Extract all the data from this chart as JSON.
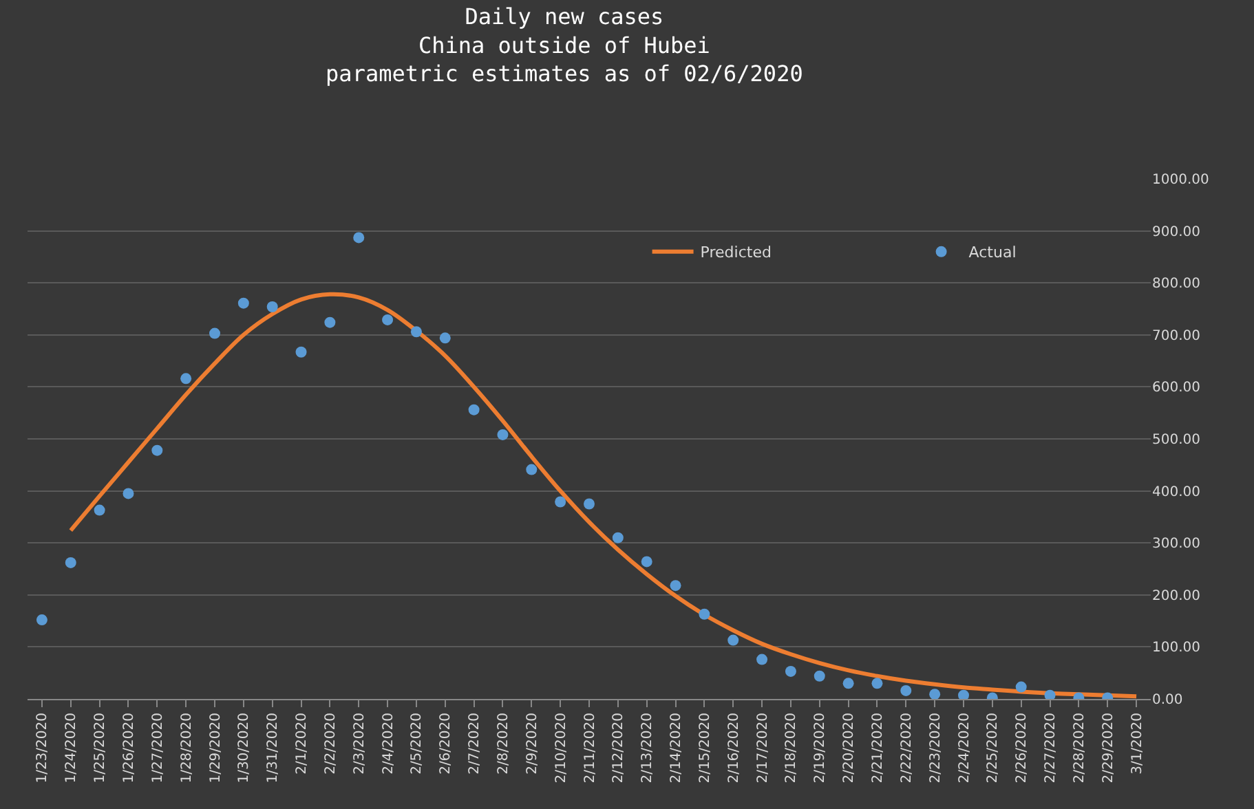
{
  "chart_data": {
    "type": "line",
    "title": "Daily new cases\nChina outside of Hubei\nparametric estimates as of 02/6/2020",
    "categories": [
      "1/23/2020",
      "1/24/2020",
      "1/25/2020",
      "1/26/2020",
      "1/27/2020",
      "1/28/2020",
      "1/29/2020",
      "1/30/2020",
      "1/31/2020",
      "2/1/2020",
      "2/2/2020",
      "2/3/2020",
      "2/4/2020",
      "2/5/2020",
      "2/6/2020",
      "2/7/2020",
      "2/8/2020",
      "2/9/2020",
      "2/10/2020",
      "2/11/2020",
      "2/12/2020",
      "2/13/2020",
      "2/14/2020",
      "2/15/2020",
      "2/16/2020",
      "2/17/2020",
      "2/18/2020",
      "2/19/2020",
      "2/20/2020",
      "2/21/2020",
      "2/22/2020",
      "2/23/2020",
      "2/24/2020",
      "2/25/2020",
      "2/26/2020",
      "2/27/2020",
      "2/28/2020",
      "2/29/2020",
      "3/1/2020"
    ],
    "series": [
      {
        "name": "Predicted",
        "color": "#ed7d31",
        "marker": "none",
        "values": [
          null,
          324,
          390,
          455,
          520,
          585,
          645,
          700,
          740,
          768,
          778,
          772,
          748,
          708,
          660,
          600,
          535,
          466,
          400,
          340,
          287,
          240,
          198,
          162,
          132,
          106,
          86,
          69,
          55,
          44,
          35,
          28,
          22,
          18,
          14,
          11,
          9,
          7,
          5
        ]
      },
      {
        "name": "Actual",
        "type": "scatter",
        "color": "#5b9bd5",
        "marker": "circle",
        "values": [
          152,
          262,
          363,
          395,
          478,
          616,
          703,
          761,
          754,
          667,
          724,
          887,
          729,
          706,
          694,
          556,
          508,
          441,
          379,
          375,
          310,
          264,
          218,
          163,
          113,
          76,
          53,
          44,
          30,
          30,
          16,
          9,
          7,
          2,
          23,
          7,
          2,
          2,
          null
        ]
      }
    ],
    "ylim": [
      0,
      1000
    ],
    "yticks": [
      {
        "value": 0,
        "label": "0.00"
      },
      {
        "value": 100,
        "label": "100.00"
      },
      {
        "value": 200,
        "label": "200.00"
      },
      {
        "value": 300,
        "label": "300.00"
      },
      {
        "value": 400,
        "label": "400.00"
      },
      {
        "value": 500,
        "label": "500.00"
      },
      {
        "value": 600,
        "label": "600.00"
      },
      {
        "value": 700,
        "label": "700.00"
      },
      {
        "value": 800,
        "label": "800.00"
      },
      {
        "value": 900,
        "label": "900.00"
      },
      {
        "value": 1000,
        "label": "1000.00"
      }
    ],
    "grid": "y",
    "legend": "top right"
  }
}
